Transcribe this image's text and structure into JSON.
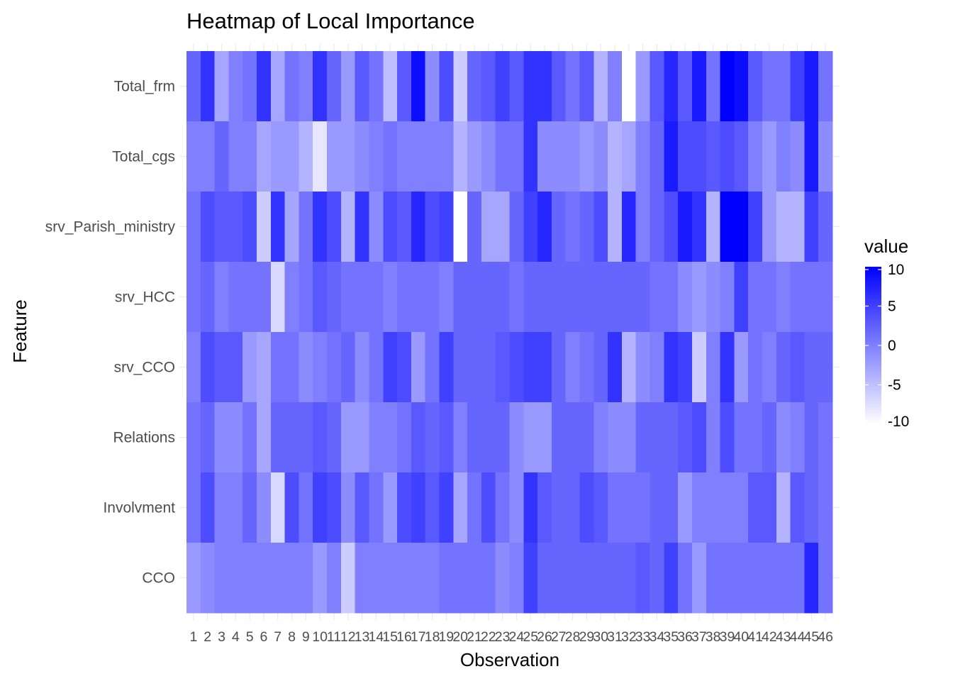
{
  "chart_data": {
    "type": "heatmap",
    "title": "Heatmap of Local Importance",
    "xlabel": "Observation",
    "ylabel": "Feature",
    "x": [
      "1",
      "2",
      "3",
      "4",
      "5",
      "6",
      "7",
      "8",
      "9",
      "10",
      "11",
      "12",
      "13",
      "14",
      "15",
      "16",
      "17",
      "18",
      "19",
      "20",
      "21",
      "22",
      "23",
      "24",
      "25",
      "26",
      "27",
      "28",
      "29",
      "30",
      "31",
      "32",
      "33",
      "34",
      "35",
      "36",
      "37",
      "38",
      "39",
      "40",
      "41",
      "42",
      "43",
      "44",
      "45",
      "46"
    ],
    "y": [
      "Total_frm",
      "Total_cgs",
      "srv_Parish_ministry",
      "srv_HCC",
      "srv_CCO",
      "Relations",
      "Involvment",
      "CCO"
    ],
    "values": [
      [
        2,
        6,
        -3,
        0,
        1,
        6,
        -3,
        1,
        0,
        6,
        2,
        -2,
        3,
        1,
        -5,
        3,
        9,
        -1,
        4,
        -6,
        2,
        3,
        5,
        3,
        6,
        6,
        3,
        1,
        3,
        -4,
        0,
        -10,
        -2,
        3,
        7,
        3,
        8,
        1,
        10,
        9,
        3,
        1,
        1,
        5,
        8,
        1
      ],
      [
        0,
        0,
        2,
        0,
        0,
        -3,
        -2,
        -2,
        -4,
        -8,
        -2,
        -2,
        -1,
        0,
        1,
        0,
        0,
        0,
        0,
        -4,
        -2,
        -1,
        1,
        1,
        6,
        -1,
        -1,
        -1,
        -2,
        -1,
        -4,
        -3,
        0,
        2,
        8,
        4,
        4,
        3,
        4,
        3,
        0,
        -2,
        0,
        -1,
        8,
        -1
      ],
      [
        1,
        4,
        3,
        3,
        4,
        -6,
        6,
        -3,
        1,
        6,
        4,
        -4,
        6,
        -1,
        4,
        3,
        7,
        4,
        5,
        -10,
        2,
        -3,
        -3,
        2,
        5,
        7,
        2,
        1,
        2,
        4,
        -4,
        7,
        0,
        2,
        4,
        8,
        6,
        -4,
        10,
        10,
        5,
        -2,
        -4,
        -4,
        5,
        2
      ],
      [
        1,
        2,
        0,
        1,
        1,
        1,
        -7,
        0,
        1,
        3,
        2,
        1,
        1,
        1,
        0,
        1,
        1,
        1,
        0,
        2,
        2,
        2,
        2,
        1,
        2,
        2,
        2,
        2,
        2,
        2,
        2,
        2,
        2,
        1,
        1,
        -1,
        -2,
        -1,
        0,
        5,
        1,
        1,
        0,
        1,
        1,
        1
      ],
      [
        0,
        4,
        3,
        3,
        -2,
        -3,
        1,
        1,
        -1,
        0,
        1,
        2,
        -1,
        1,
        5,
        4,
        -2,
        1,
        5,
        2,
        2,
        2,
        3,
        4,
        5,
        5,
        2,
        0,
        1,
        2,
        6,
        -4,
        -1,
        0,
        6,
        5,
        -6,
        0,
        6,
        -2,
        1,
        0,
        2,
        3,
        2,
        2
      ],
      [
        1,
        2,
        -1,
        -1,
        1,
        -3,
        2,
        2,
        2,
        3,
        2,
        -2,
        -2,
        0,
        0,
        1,
        3,
        2,
        3,
        0,
        2,
        2,
        2,
        -1,
        -2,
        -2,
        2,
        2,
        2,
        0,
        -1,
        -1,
        2,
        2,
        2,
        3,
        4,
        0,
        4,
        1,
        1,
        2,
        -1,
        0,
        2,
        1
      ],
      [
        1,
        4,
        0,
        0,
        2,
        -1,
        -7,
        4,
        1,
        5,
        4,
        -1,
        3,
        1,
        -2,
        4,
        5,
        3,
        5,
        -3,
        1,
        4,
        1,
        -1,
        6,
        3,
        2,
        2,
        4,
        3,
        1,
        1,
        1,
        2,
        2,
        -2,
        0,
        0,
        0,
        0,
        3,
        3,
        -4,
        3,
        2,
        1
      ],
      [
        -2,
        -1,
        0,
        0,
        0,
        0,
        0,
        0,
        0,
        -2,
        0,
        -6,
        0,
        0,
        0,
        0,
        0,
        0,
        1,
        1,
        1,
        1,
        -1,
        0,
        5,
        2,
        2,
        2,
        2,
        2,
        2,
        2,
        3,
        2,
        5,
        1,
        -2,
        1,
        1,
        1,
        1,
        1,
        1,
        1,
        7,
        1
      ]
    ],
    "colorbar": {
      "title": "value",
      "ticks": [
        10,
        5,
        0,
        -5,
        -10
      ],
      "range": [
        -10,
        10
      ],
      "low_color": "#ffffff",
      "high_color": "#0000ff"
    },
    "legend_position": "right",
    "grid": true
  }
}
